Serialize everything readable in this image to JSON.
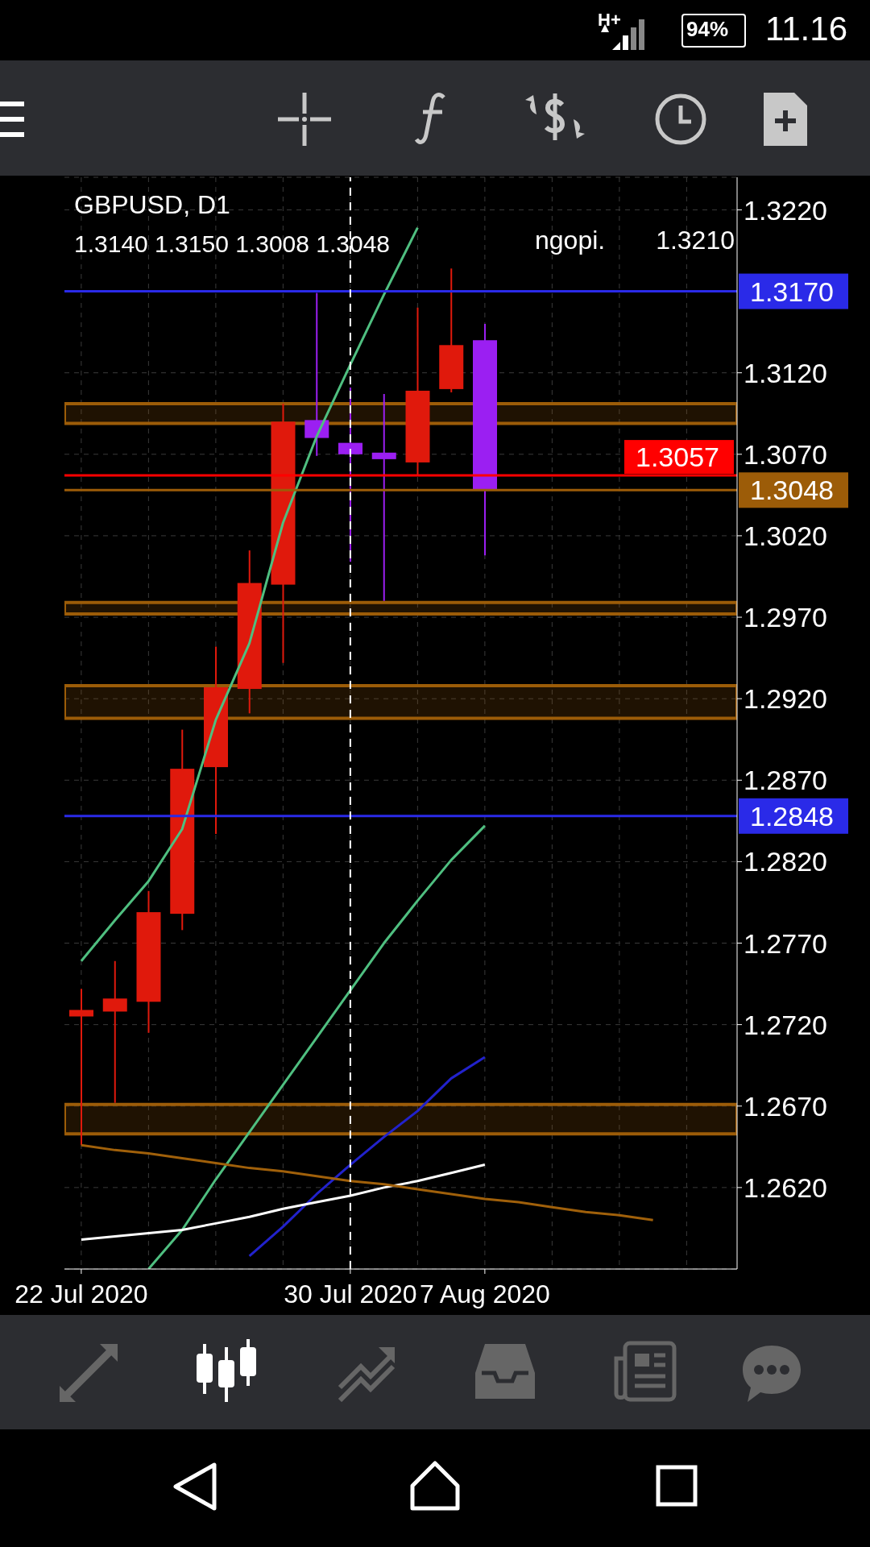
{
  "chart_data": {
    "type": "candlestick",
    "title": "GBPUSD, D1",
    "annotations": [
      "1.3140 1.3150 1.3008 1.3048",
      "ngopi.",
      "1.3210",
      "H+",
      "94%",
      "11.16"
    ],
    "categories": [
      "22 Jul 2020",
      null,
      null,
      null,
      null,
      null,
      null,
      null,
      "30 Jul 2020",
      null,
      null,
      null,
      "7 Aug 2020",
      null,
      null,
      null,
      null,
      null,
      null,
      null
    ],
    "ohlc": [
      [
        1.2725,
        1.2742,
        1.2646,
        1.2729
      ],
      [
        1.2728,
        1.2759,
        1.2672,
        1.2736
      ],
      [
        1.2734,
        1.2802,
        1.2715,
        1.2789
      ],
      [
        1.2788,
        1.2901,
        1.2778,
        1.2877
      ],
      [
        1.2878,
        1.2952,
        1.2837,
        1.2927
      ],
      [
        1.2926,
        1.3011,
        1.2911,
        1.2991
      ],
      [
        1.299,
        1.3101,
        1.2942,
        1.309
      ],
      [
        1.3091,
        1.3169,
        1.3069,
        1.308
      ],
      [
        1.3077,
        1.3111,
        1.3004,
        1.307
      ],
      [
        1.3071,
        1.3107,
        1.298,
        1.3067
      ],
      [
        1.3065,
        1.316,
        1.3057,
        1.3109
      ],
      [
        1.311,
        1.3184,
        1.3108,
        1.3137
      ],
      [
        1.314,
        1.315,
        1.3008,
        1.3048
      ],
      null,
      null,
      null,
      null,
      null,
      null,
      null
    ],
    "colors": [
      "#e0190c",
      "#e0190c",
      "#e0190c",
      "#e0190c",
      "#e0190c",
      "#e0190c",
      "#e0190c",
      "#9b1ff2",
      "#9b1ff2",
      "#9b1ff2",
      "#e0190c",
      "#e0190c",
      "#9b1ff2",
      null,
      null,
      null,
      null,
      null,
      null,
      null
    ],
    "series": [
      {
        "type": "line",
        "color": "#4fbf80",
        "values": [
          1.2759,
          1.2784,
          1.2808,
          1.284,
          1.2907,
          1.2954,
          1.3028,
          1.3081,
          1.3125,
          1.3168,
          1.3209,
          null,
          null,
          null,
          null,
          null,
          null,
          null,
          null,
          null
        ]
      },
      {
        "type": "line",
        "color": "#4fbf80",
        "values": [
          null,
          null,
          1.257,
          1.2594,
          1.2625,
          1.2654,
          1.2683,
          1.2712,
          1.2741,
          1.277,
          1.2796,
          1.2821,
          1.2842,
          null,
          null,
          null,
          null,
          null,
          null,
          null
        ]
      },
      {
        "type": "line",
        "color": "#2222cc",
        "values": [
          null,
          null,
          null,
          null,
          null,
          1.2578,
          1.2596,
          1.2616,
          1.2634,
          1.2651,
          1.2667,
          1.2687,
          1.27,
          null,
          null,
          null,
          null,
          null,
          null,
          null
        ]
      },
      {
        "type": "line",
        "color": "#ffffff",
        "values": [
          1.2588,
          1.259,
          1.2592,
          1.2594,
          1.2598,
          1.2602,
          1.2607,
          1.2611,
          1.2615,
          1.262,
          1.2624,
          1.2629,
          1.2634,
          null,
          null,
          null,
          null,
          null,
          null,
          null
        ]
      },
      {
        "type": "line",
        "color": "#a0600a",
        "values": [
          1.2646,
          1.2643,
          1.2641,
          1.2638,
          1.2635,
          1.2632,
          1.263,
          1.2627,
          1.2624,
          1.2622,
          1.2619,
          1.2616,
          1.2613,
          1.2611,
          1.2608,
          1.2605,
          1.2603,
          1.26,
          null,
          null
        ]
      }
    ],
    "ylim": [
      1.257,
      1.324
    ],
    "yticks": [
      {
        "value": 1.322,
        "label": "1.3220"
      },
      {
        "value": 1.312,
        "label": "1.3120"
      },
      {
        "value": 1.307,
        "label": "1.3070"
      },
      {
        "value": 1.302,
        "label": "1.3020"
      },
      {
        "value": 1.297,
        "label": "1.2970"
      },
      {
        "value": 1.292,
        "label": "1.2920"
      },
      {
        "value": 1.287,
        "label": "1.2870"
      },
      {
        "value": 1.282,
        "label": "1.2820"
      },
      {
        "value": 1.277,
        "label": "1.2770"
      },
      {
        "value": 1.272,
        "label": "1.2720"
      },
      {
        "value": 1.267,
        "label": "1.2670"
      },
      {
        "value": 1.262,
        "label": "1.2620"
      }
    ],
    "ref_lines": [
      {
        "axis": "y",
        "value": 1.317,
        "label": "1.3170",
        "color": "#2a2ae8"
      },
      {
        "axis": "y",
        "value": 1.2848,
        "label": "1.2848",
        "color": "#2a2ae8"
      },
      {
        "axis": "y",
        "value": 1.3057,
        "label": "1.3057",
        "color": "#ff0000"
      },
      {
        "axis": "y",
        "value": 1.3048,
        "label": "1.3048",
        "color": "#9c5c08"
      },
      {
        "axis": "x",
        "value": "30 Jul 2020",
        "color": "#ffffff",
        "line_style": "dashed"
      }
    ],
    "bands": [
      {
        "axis": "y",
        "from": 1.3089,
        "to": 1.3101,
        "color": "#9c5c08"
      },
      {
        "axis": "y",
        "from": 1.2972,
        "to": 1.2979,
        "color": "#9c5c08"
      },
      {
        "axis": "y",
        "from": 1.2908,
        "to": 1.2928,
        "color": "#9c5c08"
      },
      {
        "axis": "y",
        "from": 1.2653,
        "to": 1.2671,
        "color": "#9c5c08"
      }
    ],
    "grid": true,
    "legend": false,
    "marker": "none",
    "line_style": "solid"
  }
}
